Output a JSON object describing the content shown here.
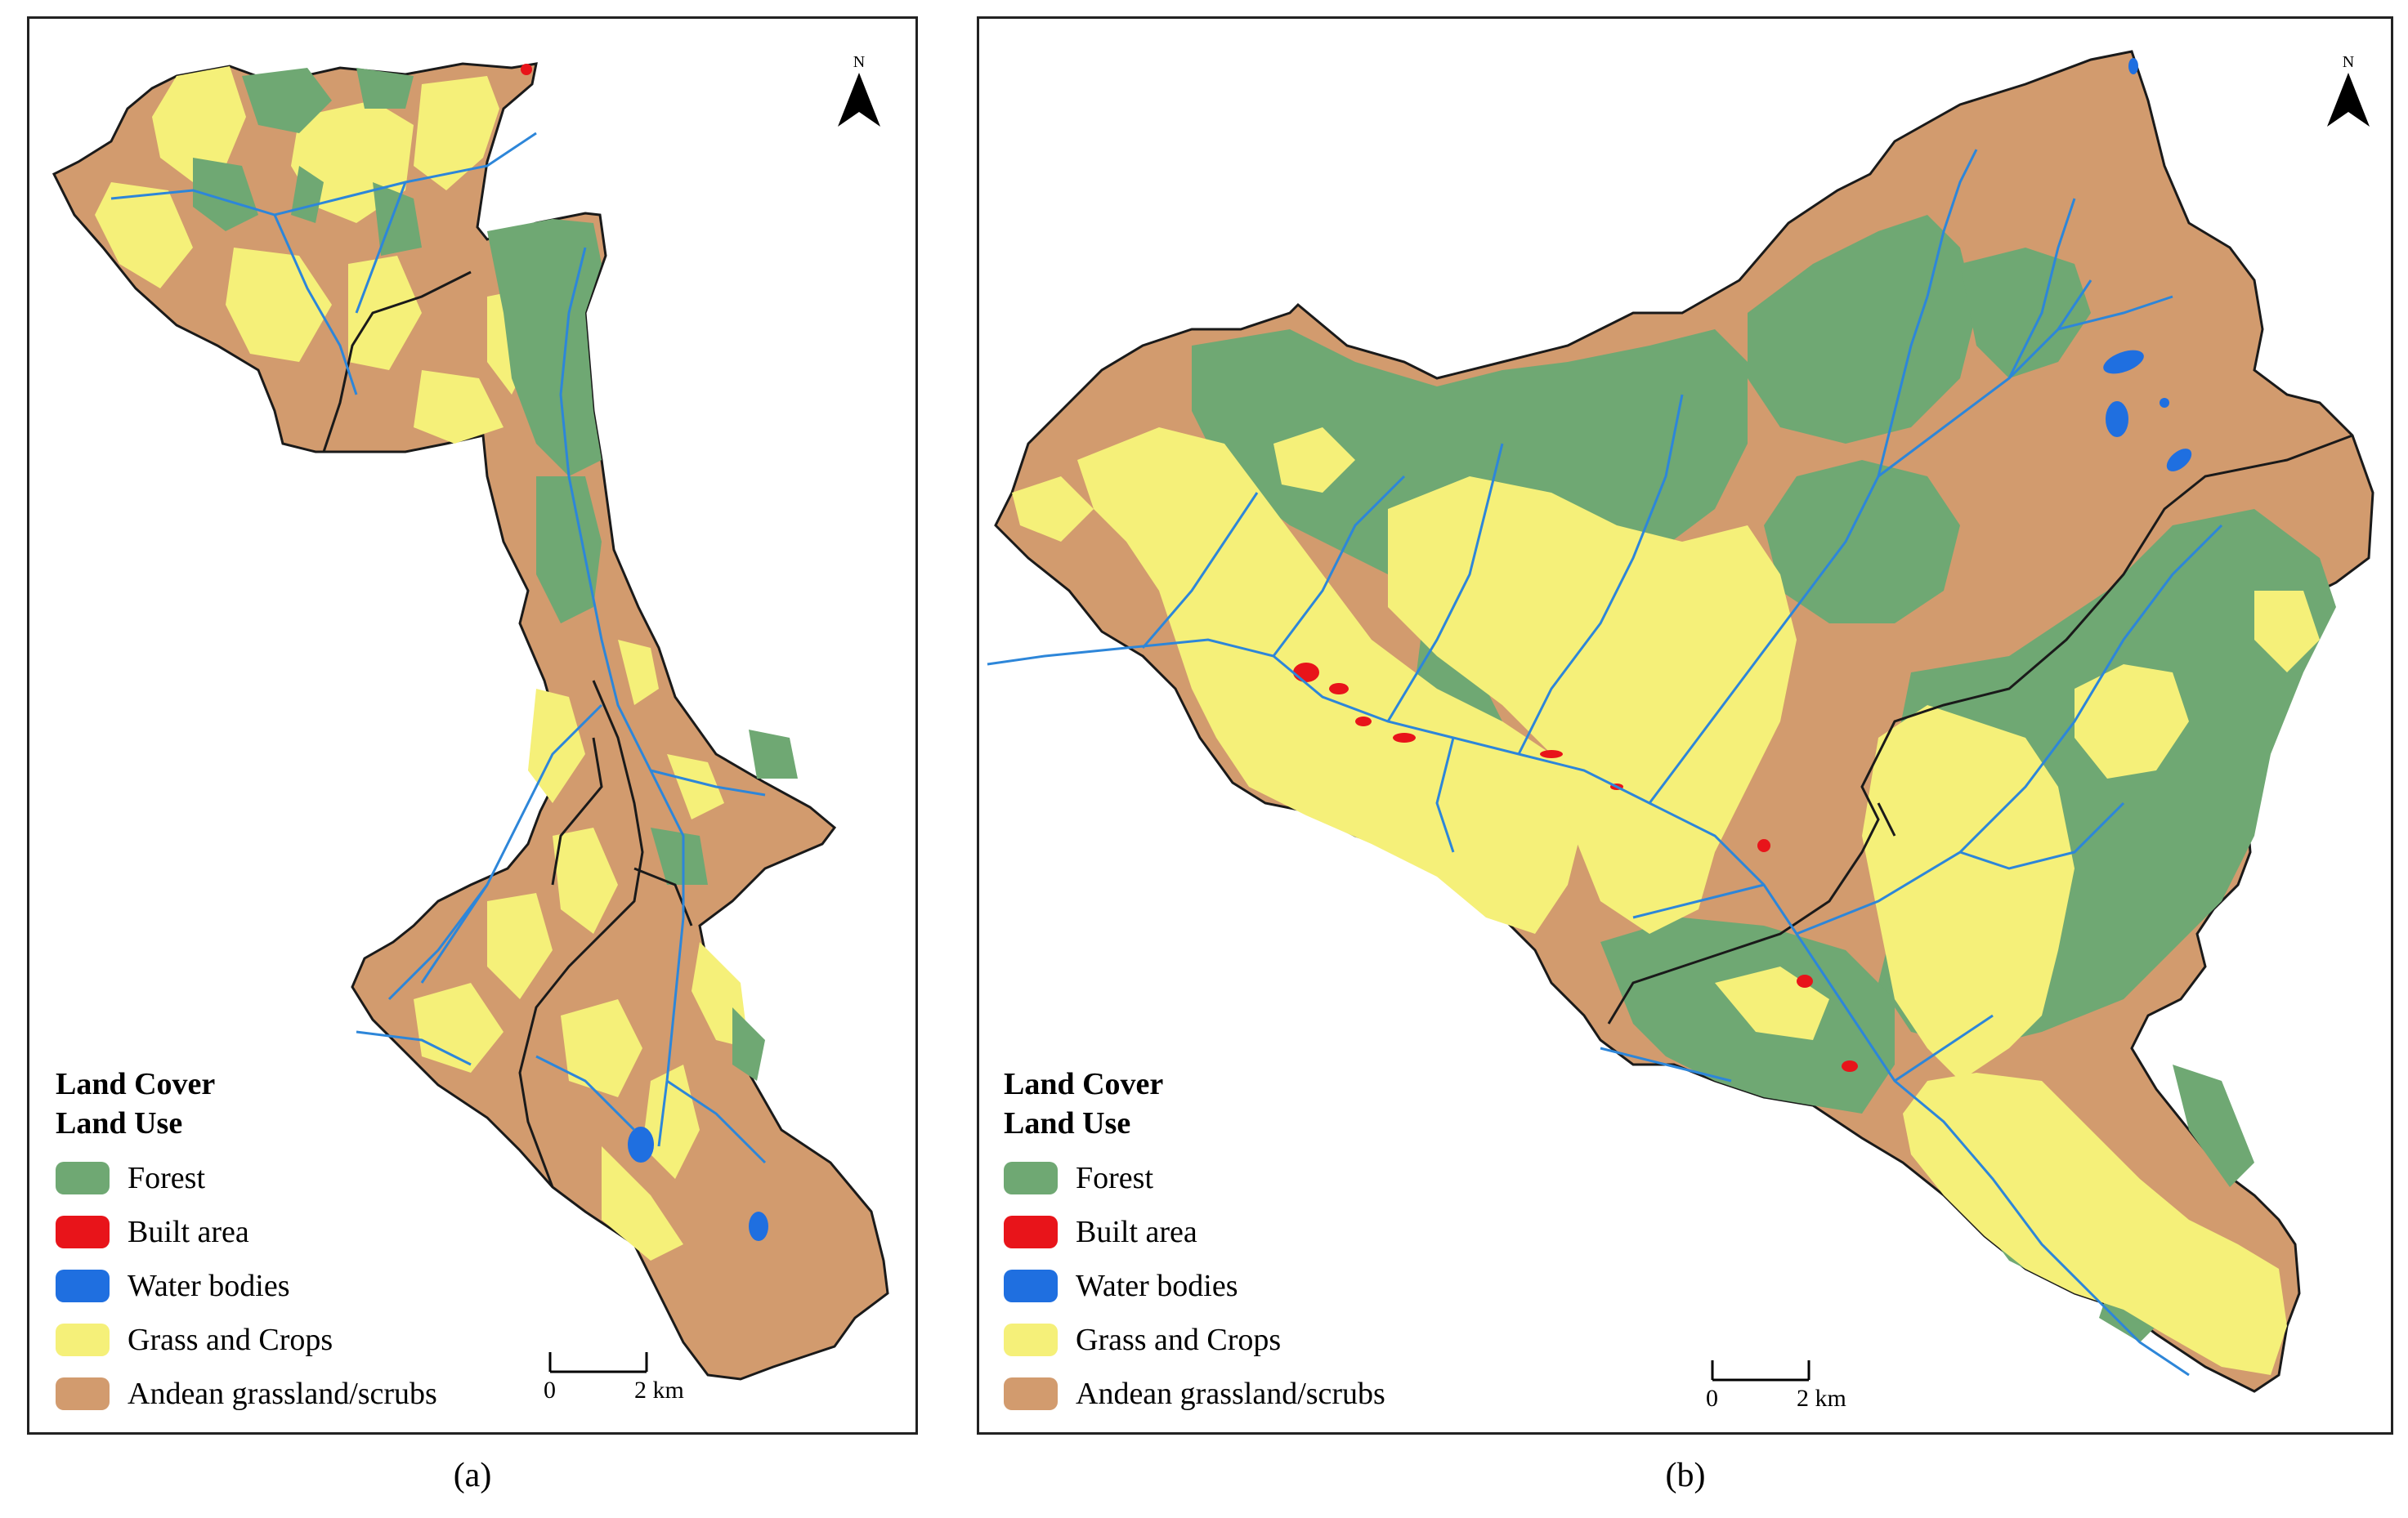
{
  "legend": {
    "title_line1": "Land Cover",
    "title_line2": "Land Use",
    "items": [
      {
        "label": "Forest",
        "color": "#6fa873"
      },
      {
        "label": "Built area",
        "color": "#e8141a"
      },
      {
        "label": "Water bodies",
        "color": "#1f6fe0"
      },
      {
        "label": "Grass and Crops",
        "color": "#f5f079"
      },
      {
        "label": "Andean grassland/scrubs",
        "color": "#d29b6e"
      }
    ]
  },
  "north_arrow": {
    "label": "N"
  },
  "scale": {
    "zero": "0",
    "end": "2 km"
  },
  "panels": [
    {
      "caption": "(a)"
    },
    {
      "caption": "(b)"
    }
  ],
  "colors": {
    "forest": "#6fa873",
    "built": "#e8141a",
    "water": "#1f6fe0",
    "grass": "#f5f079",
    "andean": "#d29b6e",
    "river": "#2d86d9",
    "boundary": "#1a1a1a"
  }
}
